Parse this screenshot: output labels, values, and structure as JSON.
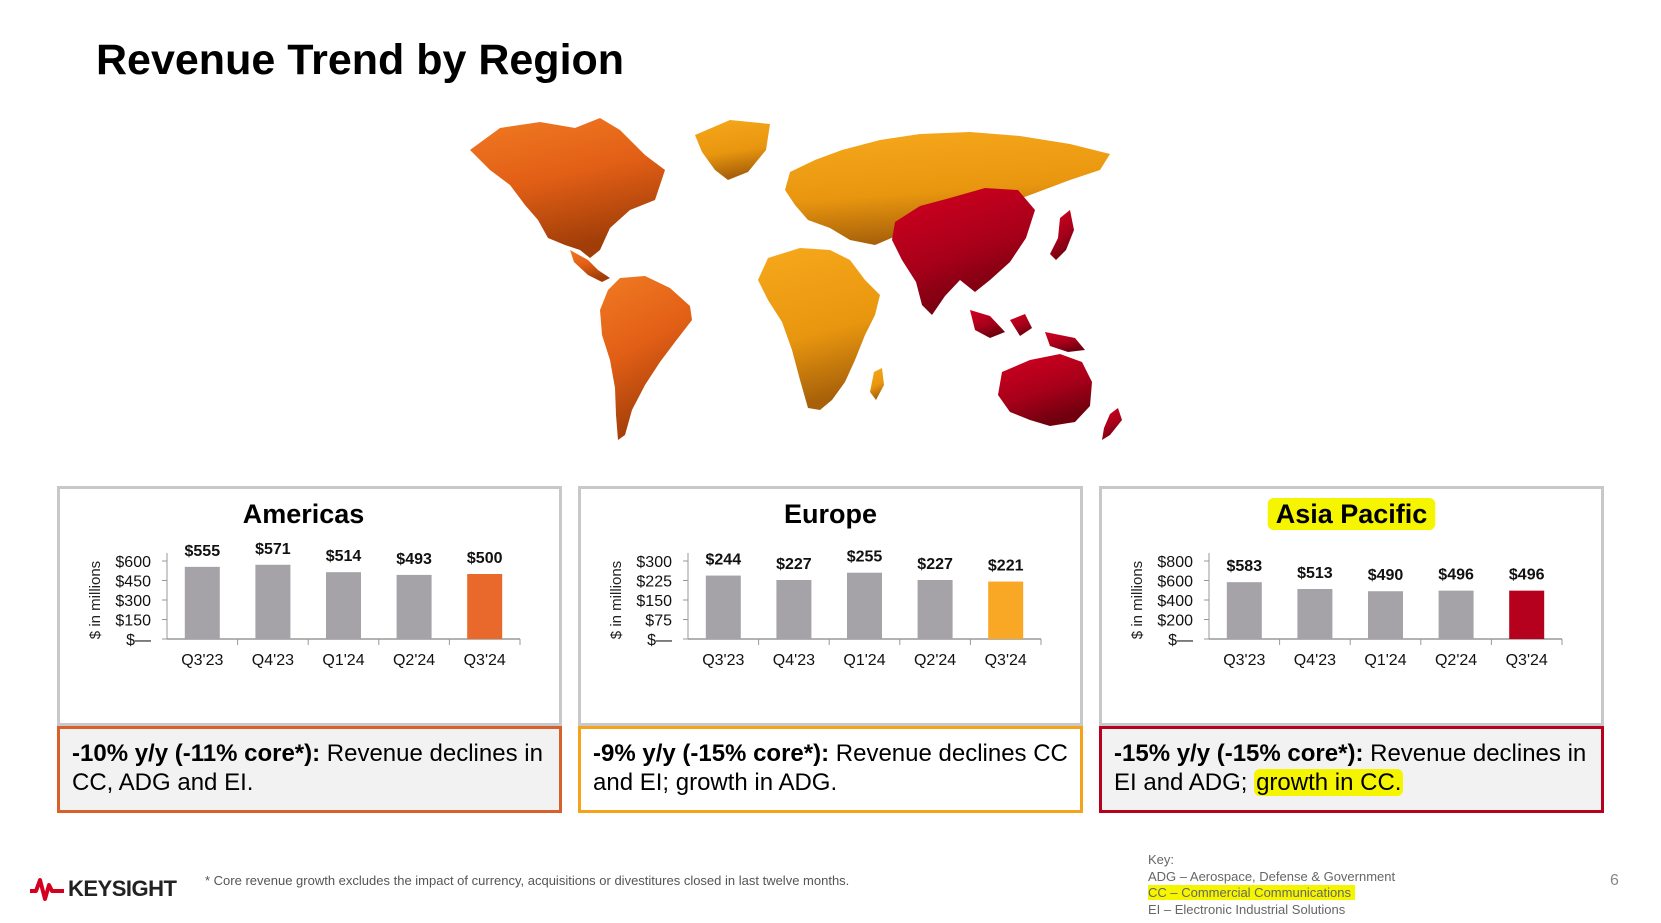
{
  "page": {
    "title": "Revenue Trend by Region",
    "footnote": "* Core revenue growth excludes the impact of currency, acquisitions or divestitures closed in last twelve months.",
    "page_number": "6",
    "logo_text": "KEYSIGHT",
    "key": {
      "heading": "Key:",
      "items": [
        {
          "text": "ADG – Aerospace, Defense & Government",
          "highlight": false
        },
        {
          "text": "CC – Commercial Communications",
          "highlight": true
        },
        {
          "text": "EI – Electronic Industrial Solutions",
          "highlight": false
        }
      ]
    }
  },
  "map": {
    "regions": [
      {
        "name": "Americas",
        "color": "#e8651a"
      },
      {
        "name": "Europe",
        "color": "#f5a31b"
      },
      {
        "name": "Asia Pacific",
        "color": "#b5001e"
      }
    ]
  },
  "chart_data": [
    {
      "type": "bar",
      "title": "Americas",
      "ylabel": "$ in millions",
      "categories": [
        "Q3'23",
        "Q4'23",
        "Q1'24",
        "Q2'24",
        "Q3'24"
      ],
      "values": [
        555,
        571,
        514,
        493,
        500
      ],
      "value_labels": [
        "$555",
        "$571",
        "$514",
        "$493",
        "$500"
      ],
      "yticks": [
        "$—",
        "$150",
        "$300",
        "$450",
        "$600"
      ],
      "ylim": [
        0,
        600
      ],
      "bar_color": "#a5a3a8",
      "highlight_color": "#e8692b",
      "note": {
        "bold": "-10% y/y (-11% core*):",
        "text": " Revenue declines in CC, ADG and EI.",
        "border_color": "#d8602a"
      }
    },
    {
      "type": "bar",
      "title": "Europe",
      "ylabel": "$ in millions",
      "categories": [
        "Q3'23",
        "Q4'23",
        "Q1'24",
        "Q2'24",
        "Q3'24"
      ],
      "values": [
        244,
        227,
        255,
        227,
        221
      ],
      "value_labels": [
        "$244",
        "$227",
        "$255",
        "$227",
        "$221"
      ],
      "yticks": [
        "$—",
        "$75",
        "$150",
        "$225",
        "$300"
      ],
      "ylim": [
        0,
        300
      ],
      "bar_color": "#a5a3a8",
      "highlight_color": "#f9a825",
      "note": {
        "bold": "-9% y/y (-15% core*):",
        "text": " Revenue declines CC and EI; growth in ADG.",
        "border_color": "#f5a31b"
      }
    },
    {
      "type": "bar",
      "title": "Asia Pacific",
      "ylabel": "$ in millions",
      "categories": [
        "Q3'23",
        "Q4'23",
        "Q1'24",
        "Q2'24",
        "Q3'24"
      ],
      "values": [
        583,
        513,
        490,
        496,
        496
      ],
      "value_labels": [
        "$583",
        "$513",
        "$490",
        "$496",
        "$496"
      ],
      "yticks": [
        "$—",
        "$200",
        "$400",
        "$600",
        "$800"
      ],
      "ylim": [
        0,
        800
      ],
      "bar_color": "#a5a3a8",
      "highlight_color": "#b5001e",
      "note": {
        "bold": "-15% y/y (-15% core*):",
        "text": " Revenue declines in EI and ADG; ",
        "highlight_text": "growth in CC.",
        "border_color": "#b5001e"
      }
    }
  ]
}
